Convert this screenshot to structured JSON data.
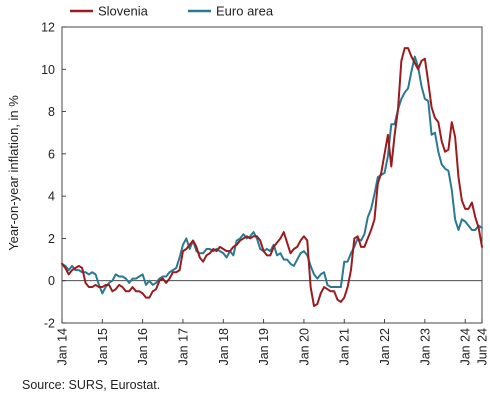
{
  "chart_data": {
    "type": "line",
    "ylabel": "Year-on-year inflation, in %",
    "ylim": [
      -2,
      12
    ],
    "yticks": [
      "-2",
      "0",
      "2",
      "4",
      "6",
      "8",
      "10",
      "12"
    ],
    "xlim": [
      "2014-01",
      "2024-06"
    ],
    "xticks": [
      {
        "label": "Jan 14",
        "date": "2014-01"
      },
      {
        "label": "Jan 15",
        "date": "2015-01"
      },
      {
        "label": "Jan 16",
        "date": "2016-01"
      },
      {
        "label": "Jan 17",
        "date": "2017-01"
      },
      {
        "label": "Jan 18",
        "date": "2018-01"
      },
      {
        "label": "Jan 19",
        "date": "2019-01"
      },
      {
        "label": "Jan 20",
        "date": "2020-01"
      },
      {
        "label": "Jan 21",
        "date": "2021-01"
      },
      {
        "label": "Jan 22",
        "date": "2022-01"
      },
      {
        "label": "Jan 23",
        "date": "2023-01"
      },
      {
        "label": "Jan 24",
        "date": "2024-01"
      },
      {
        "label": "Jun 24",
        "date": "2024-06"
      }
    ],
    "legend_position": "top-left",
    "grid": false,
    "start_date": "2014-01",
    "series": [
      {
        "name": "Slovenia",
        "color": "#9b1b1f",
        "values": [
          0.8,
          0.6,
          0.3,
          0.5,
          0.6,
          0.7,
          0.6,
          -0.1,
          -0.3,
          -0.3,
          -0.2,
          -0.3,
          -0.3,
          -0.2,
          -0.2,
          -0.5,
          -0.4,
          -0.2,
          -0.3,
          -0.5,
          -0.5,
          -0.3,
          -0.5,
          -0.5,
          -0.6,
          -0.8,
          -0.8,
          -0.5,
          -0.4,
          0.0,
          0.1,
          -0.1,
          0.1,
          0.4,
          0.4,
          0.5,
          1.4,
          1.5,
          1.7,
          1.9,
          1.6,
          1.1,
          0.9,
          1.2,
          1.3,
          1.5,
          1.4,
          1.6,
          1.5,
          1.4,
          1.4,
          1.6,
          1.7,
          1.9,
          2.0,
          2.1,
          2.0,
          2.1,
          2.1,
          1.9,
          1.4,
          1.2,
          1.2,
          1.6,
          1.8,
          2.0,
          2.3,
          1.8,
          1.3,
          1.5,
          1.6,
          1.9,
          2.1,
          1.9,
          -0.3,
          -1.2,
          -1.1,
          -0.6,
          -0.3,
          -0.4,
          -0.5,
          -0.5,
          -0.9,
          -1.0,
          -0.8,
          -0.3,
          0.5,
          2.0,
          2.1,
          1.6,
          1.6,
          2.0,
          2.4,
          2.9,
          4.6,
          5.1,
          6.0,
          6.9,
          5.4,
          6.9,
          8.1,
          10.4,
          11.0,
          11.0,
          10.6,
          10.3,
          10.0,
          10.4,
          10.5,
          9.4,
          8.2,
          7.7,
          7.5,
          6.6,
          6.1,
          6.2,
          7.5,
          6.8,
          4.9,
          3.8,
          3.4,
          3.4,
          3.7,
          3.0,
          2.5,
          1.6
        ]
      },
      {
        "name": "Euro area",
        "color": "#2b7a91",
        "values": [
          0.8,
          0.7,
          0.5,
          0.7,
          0.5,
          0.5,
          0.4,
          0.4,
          0.3,
          0.4,
          0.3,
          -0.2,
          -0.6,
          -0.3,
          -0.1,
          0.0,
          0.3,
          0.2,
          0.2,
          0.1,
          -0.1,
          0.1,
          0.1,
          0.2,
          0.3,
          -0.2,
          0.0,
          -0.2,
          -0.1,
          0.1,
          0.2,
          0.2,
          0.4,
          0.5,
          0.6,
          1.1,
          1.7,
          2.0,
          1.5,
          1.9,
          1.4,
          1.3,
          1.3,
          1.5,
          1.5,
          1.4,
          1.5,
          1.4,
          1.3,
          1.1,
          1.4,
          1.2,
          1.9,
          2.0,
          2.2,
          2.0,
          2.1,
          2.3,
          2.0,
          1.5,
          1.4,
          1.5,
          1.4,
          1.7,
          1.2,
          1.3,
          1.0,
          1.0,
          0.8,
          0.7,
          1.0,
          1.3,
          1.4,
          1.2,
          0.7,
          0.3,
          0.1,
          0.3,
          0.4,
          -0.2,
          -0.3,
          -0.3,
          -0.3,
          -0.3,
          0.9,
          0.9,
          1.3,
          1.6,
          2.0,
          1.9,
          2.2,
          3.0,
          3.4,
          4.1,
          4.9,
          5.0,
          5.1,
          5.9,
          7.4,
          7.4,
          8.1,
          8.6,
          8.9,
          9.1,
          9.9,
          10.6,
          10.1,
          9.2,
          8.6,
          8.5,
          6.9,
          7.0,
          6.1,
          5.5,
          5.3,
          5.2,
          4.3,
          2.9,
          2.4,
          2.9,
          2.8,
          2.6,
          2.4,
          2.4,
          2.6,
          2.5
        ]
      }
    ]
  },
  "footer": {
    "source": "Source: SURS, Eurostat."
  }
}
